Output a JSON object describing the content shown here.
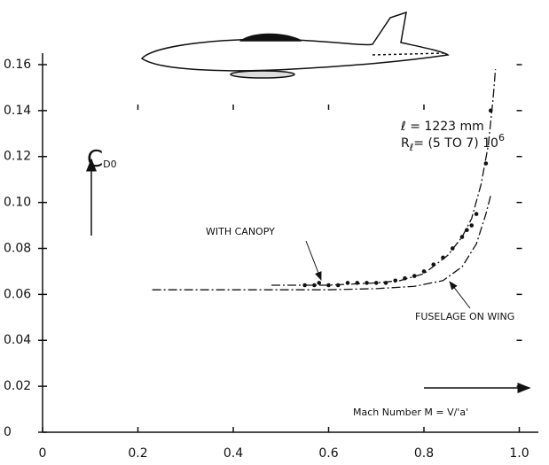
{
  "chart_data": {
    "type": "scatter",
    "xlim": [
      0,
      1.04
    ],
    "ylim": [
      0,
      0.165
    ],
    "xticks": [
      0,
      0.2,
      0.4,
      0.6,
      0.8,
      {
        "value": 1,
        "label": "1.0"
      }
    ],
    "yticks": [
      0,
      0.02,
      0.04,
      0.06,
      0.08,
      {
        "value": 0.1,
        "label": "0.10"
      },
      0.12,
      0.14,
      0.16
    ],
    "y_label": "C",
    "y_label_sub": "D0",
    "x_label": "Mach  Number  M = V/'a'",
    "length_label": "ℓ = 1223 mm",
    "reynolds_label": "R",
    "reynolds_sub": "ℓ",
    "reynolds_text": "= (5 TO 7) 10",
    "reynolds_sup": "6",
    "series": [
      {
        "name": "WITH CANOPY",
        "color": "#111",
        "x": [
          0.55,
          0.57,
          0.58,
          0.6,
          0.62,
          0.64,
          0.66,
          0.68,
          0.7,
          0.72,
          0.74,
          0.76,
          0.78,
          0.8,
          0.82,
          0.84,
          0.86,
          0.88,
          0.89,
          0.9,
          0.91,
          0.93,
          0.94
        ],
        "values": [
          0.064,
          0.064,
          0.065,
          0.064,
          0.064,
          0.065,
          0.065,
          0.065,
          0.065,
          0.065,
          0.066,
          0.067,
          0.068,
          0.07,
          0.073,
          0.076,
          0.08,
          0.085,
          0.088,
          0.09,
          0.095,
          0.117,
          0.14
        ],
        "line_x": [
          0.48,
          0.55,
          0.6,
          0.7,
          0.75,
          0.8,
          0.85,
          0.88,
          0.9,
          0.92,
          0.935,
          0.945,
          0.95
        ],
        "line_values": [
          0.064,
          0.064,
          0.064,
          0.065,
          0.066,
          0.069,
          0.077,
          0.085,
          0.093,
          0.108,
          0.125,
          0.145,
          0.158
        ]
      },
      {
        "name": "FUSELAGE ON WING",
        "color": "#111",
        "line_x": [
          0.23,
          0.4,
          0.6,
          0.7,
          0.78,
          0.84,
          0.88,
          0.91,
          0.93,
          0.94
        ],
        "line_values": [
          0.062,
          0.062,
          0.062,
          0.0625,
          0.0635,
          0.066,
          0.072,
          0.082,
          0.095,
          0.103
        ]
      }
    ]
  }
}
